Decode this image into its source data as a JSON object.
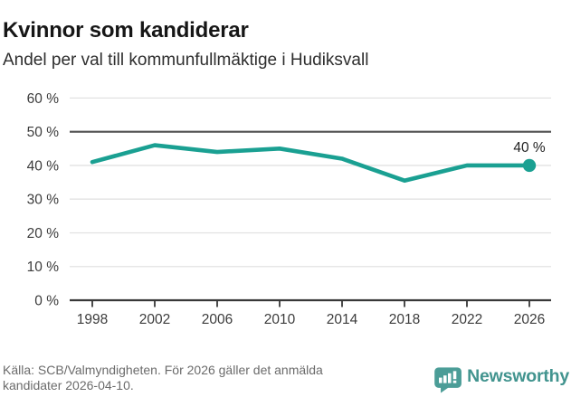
{
  "chart_data": {
    "type": "line",
    "title": "Kvinnor som kandiderar",
    "subtitle": "Andel per val till kommunfullmäktige i Hudiksvall",
    "x": [
      1998,
      2002,
      2006,
      2010,
      2014,
      2018,
      2022,
      2026
    ],
    "x_tick_labels": [
      "1998",
      "2002",
      "2006",
      "2010",
      "2014",
      "2018",
      "2022",
      "2026"
    ],
    "values": [
      41,
      46,
      44,
      45,
      42,
      35.5,
      40,
      40
    ],
    "unit": "%",
    "ylim": [
      0,
      60
    ],
    "y_ticks": [
      0,
      10,
      20,
      30,
      40,
      50,
      60
    ],
    "y_tick_labels": [
      "0 %",
      "10 %",
      "20 %",
      "30 %",
      "40 %",
      "50 %",
      "60 %"
    ],
    "reference_line_y": 50,
    "end_point_label": "40 %",
    "grid": "horizontal",
    "legend": "none",
    "line_color": "#1aa092"
  },
  "colors": {
    "accent_teal": "#1aa092",
    "logo_teal": "#4b9d97",
    "wordmark_teal": "#42948f",
    "grid_light": "#e2e2e2",
    "reference_dark": "#4f4f4f",
    "axis_dark": "#383838",
    "text_dark": "#161616",
    "text_gray": "#6b6b6b"
  },
  "footer": {
    "source_lines": [
      "Källa: SCB/Valmyndigheten. För 2026 gäller det anmälda",
      "kandidater 2026-04-10."
    ],
    "brand": "Newsworthy"
  }
}
